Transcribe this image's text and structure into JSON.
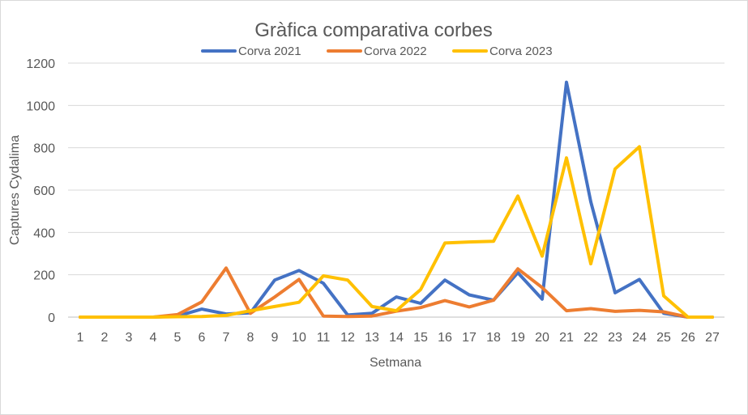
{
  "chart_data": {
    "type": "line",
    "title": "Gràfica comparativa corbes",
    "xlabel": "Setmana",
    "ylabel": "Captures Cydalima",
    "categories": [
      "1",
      "2",
      "3",
      "4",
      "5",
      "6",
      "7",
      "8",
      "9",
      "10",
      "11",
      "12",
      "13",
      "14",
      "15",
      "16",
      "17",
      "18",
      "19",
      "20",
      "21",
      "22",
      "23",
      "24",
      "25",
      "26",
      "27"
    ],
    "ylim": [
      0,
      1200
    ],
    "yticks": [
      "0",
      "200",
      "400",
      "600",
      "800",
      "1000",
      "1200"
    ],
    "grid": true,
    "legend_position": "top",
    "series": [
      {
        "name": "Corva 2021",
        "color": "#4472c4",
        "values": [
          0,
          0,
          0,
          0,
          5,
          38,
          15,
          20,
          175,
          220,
          160,
          10,
          18,
          95,
          65,
          175,
          105,
          80,
          210,
          85,
          1110,
          545,
          115,
          178,
          18,
          0,
          0
        ]
      },
      {
        "name": "Corva 2022",
        "color": "#ed7d31",
        "values": [
          0,
          0,
          0,
          0,
          12,
          72,
          232,
          18,
          95,
          178,
          5,
          3,
          5,
          28,
          45,
          78,
          48,
          80,
          228,
          140,
          30,
          40,
          27,
          32,
          25,
          0,
          0
        ]
      },
      {
        "name": "Corva 2023",
        "color": "#ffc000",
        "values": [
          0,
          0,
          0,
          0,
          2,
          3,
          8,
          30,
          50,
          70,
          195,
          175,
          50,
          30,
          130,
          350,
          355,
          358,
          572,
          288,
          752,
          252,
          700,
          805,
          100,
          0,
          0
        ]
      }
    ]
  }
}
